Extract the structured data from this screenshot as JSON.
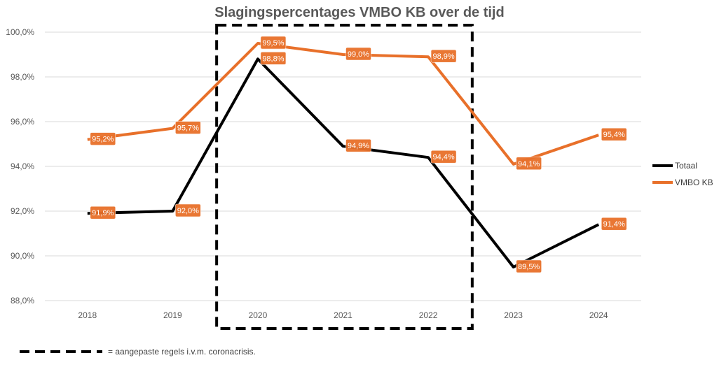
{
  "chart_data": {
    "type": "line",
    "title": "Slagingspercentages VMBO KB over de tijd",
    "categories": [
      "2018",
      "2019",
      "2020",
      "2021",
      "2022",
      "2023",
      "2024"
    ],
    "ylim": [
      88,
      100
    ],
    "yticks": [
      88,
      90,
      92,
      94,
      96,
      98,
      100
    ],
    "ytick_labels": [
      "88,0%",
      "90,0%",
      "92,0%",
      "94,0%",
      "96,0%",
      "98,0%",
      "100,0%"
    ],
    "grid": true,
    "legend_position": "right",
    "series": [
      {
        "name": "Totaal",
        "color": "#000000",
        "values": [
          91.9,
          92.0,
          98.8,
          94.9,
          94.4,
          89.5,
          91.4
        ],
        "labels": [
          "91,9%",
          "92,0%",
          "98,8%",
          "94,9%",
          "94,4%",
          "89,5%",
          "91,4%"
        ]
      },
      {
        "name": "VMBO KB",
        "color": "#E8702A",
        "values": [
          95.2,
          95.7,
          99.5,
          99.0,
          98.9,
          94.1,
          95.4
        ],
        "labels": [
          "95,2%",
          "95,7%",
          "99,5%",
          "99,0%",
          "98,9%",
          "94,1%",
          "95,4%"
        ]
      }
    ],
    "highlight": {
      "from": "2020",
      "to": "2022",
      "style": "dashed-box",
      "note": "= aangepaste regels i.v.m. coronacrisis."
    },
    "label_bg_color": "#E8702A",
    "grid_color": "#D9D9D9"
  }
}
